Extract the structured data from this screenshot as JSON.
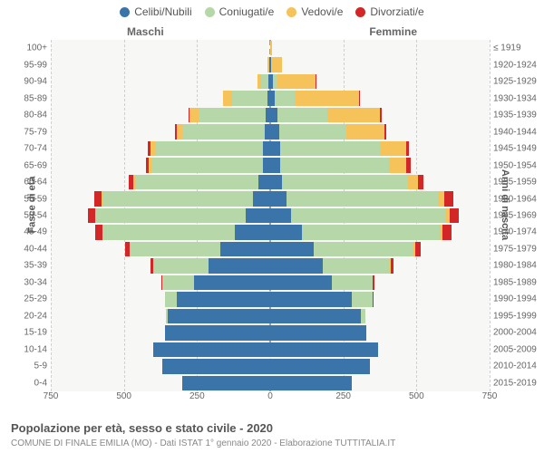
{
  "chart": {
    "type": "population-pyramid",
    "legend": [
      {
        "label": "Celibi/Nubili",
        "color": "#3b74a8"
      },
      {
        "label": "Coniugati/e",
        "color": "#b6d7a8"
      },
      {
        "label": "Vedovi/e",
        "color": "#f6c35a"
      },
      {
        "label": "Divorziati/e",
        "color": "#d32626"
      }
    ],
    "side_labels": {
      "male": "Maschi",
      "female": "Femmine"
    },
    "yaxis_left_title": "Fasce di età",
    "yaxis_right_title": "Anni di nascita",
    "xmax": 750,
    "xticks": [
      750,
      500,
      250,
      0,
      250,
      500,
      750
    ],
    "plot_bg": "#f7f7f5",
    "grid_color": "#cfcfcf",
    "title": "Popolazione per età, sesso e stato civile - 2020",
    "subtitle": "COMUNE DI FINALE EMILIA (MO) - Dati ISTAT 1° gennaio 2020 - Elaborazione TUTTITALIA.IT",
    "rows": [
      {
        "age": "100+",
        "birth": "≤ 1919",
        "m": [
          0,
          0,
          0,
          0
        ],
        "f": [
          0,
          0,
          5,
          0
        ]
      },
      {
        "age": "95-99",
        "birth": "1920-1924",
        "m": [
          2,
          2,
          4,
          0
        ],
        "f": [
          3,
          2,
          35,
          0
        ]
      },
      {
        "age": "90-94",
        "birth": "1925-1929",
        "m": [
          5,
          25,
          12,
          0
        ],
        "f": [
          10,
          15,
          130,
          2
        ]
      },
      {
        "age": "85-89",
        "birth": "1930-1934",
        "m": [
          10,
          120,
          30,
          2
        ],
        "f": [
          15,
          70,
          220,
          3
        ]
      },
      {
        "age": "80-84",
        "birth": "1935-1939",
        "m": [
          15,
          230,
          30,
          3
        ],
        "f": [
          25,
          170,
          180,
          5
        ]
      },
      {
        "age": "75-79",
        "birth": "1940-1944",
        "m": [
          20,
          280,
          20,
          5
        ],
        "f": [
          30,
          230,
          130,
          8
        ]
      },
      {
        "age": "70-74",
        "birth": "1945-1949",
        "m": [
          25,
          370,
          15,
          8
        ],
        "f": [
          35,
          340,
          90,
          10
        ]
      },
      {
        "age": "65-69",
        "birth": "1950-1954",
        "m": [
          25,
          380,
          10,
          10
        ],
        "f": [
          35,
          370,
          60,
          15
        ]
      },
      {
        "age": "60-64",
        "birth": "1955-1959",
        "m": [
          40,
          420,
          8,
          15
        ],
        "f": [
          40,
          430,
          35,
          20
        ]
      },
      {
        "age": "55-59",
        "birth": "1960-1964",
        "m": [
          60,
          510,
          6,
          25
        ],
        "f": [
          55,
          520,
          20,
          30
        ]
      },
      {
        "age": "50-54",
        "birth": "1965-1969",
        "m": [
          85,
          510,
          4,
          25
        ],
        "f": [
          70,
          530,
          15,
          30
        ]
      },
      {
        "age": "45-49",
        "birth": "1970-1974",
        "m": [
          120,
          450,
          3,
          25
        ],
        "f": [
          110,
          470,
          10,
          30
        ]
      },
      {
        "age": "40-44",
        "birth": "1975-1979",
        "m": [
          170,
          310,
          2,
          15
        ],
        "f": [
          150,
          340,
          5,
          18
        ]
      },
      {
        "age": "35-39",
        "birth": "1980-1984",
        "m": [
          210,
          190,
          1,
          8
        ],
        "f": [
          180,
          230,
          3,
          10
        ]
      },
      {
        "age": "30-34",
        "birth": "1985-1989",
        "m": [
          260,
          110,
          0,
          3
        ],
        "f": [
          210,
          140,
          1,
          5
        ]
      },
      {
        "age": "25-29",
        "birth": "1990-1994",
        "m": [
          320,
          40,
          0,
          1
        ],
        "f": [
          280,
          70,
          0,
          2
        ]
      },
      {
        "age": "20-24",
        "birth": "1995-1999",
        "m": [
          350,
          8,
          0,
          0
        ],
        "f": [
          310,
          15,
          0,
          0
        ]
      },
      {
        "age": "15-19",
        "birth": "2000-2004",
        "m": [
          360,
          0,
          0,
          0
        ],
        "f": [
          330,
          0,
          0,
          0
        ]
      },
      {
        "age": "10-14",
        "birth": "2005-2009",
        "m": [
          400,
          0,
          0,
          0
        ],
        "f": [
          370,
          0,
          0,
          0
        ]
      },
      {
        "age": "5-9",
        "birth": "2010-2014",
        "m": [
          370,
          0,
          0,
          0
        ],
        "f": [
          340,
          0,
          0,
          0
        ]
      },
      {
        "age": "0-4",
        "birth": "2015-2019",
        "m": [
          300,
          0,
          0,
          0
        ],
        "f": [
          280,
          0,
          0,
          0
        ]
      }
    ]
  }
}
